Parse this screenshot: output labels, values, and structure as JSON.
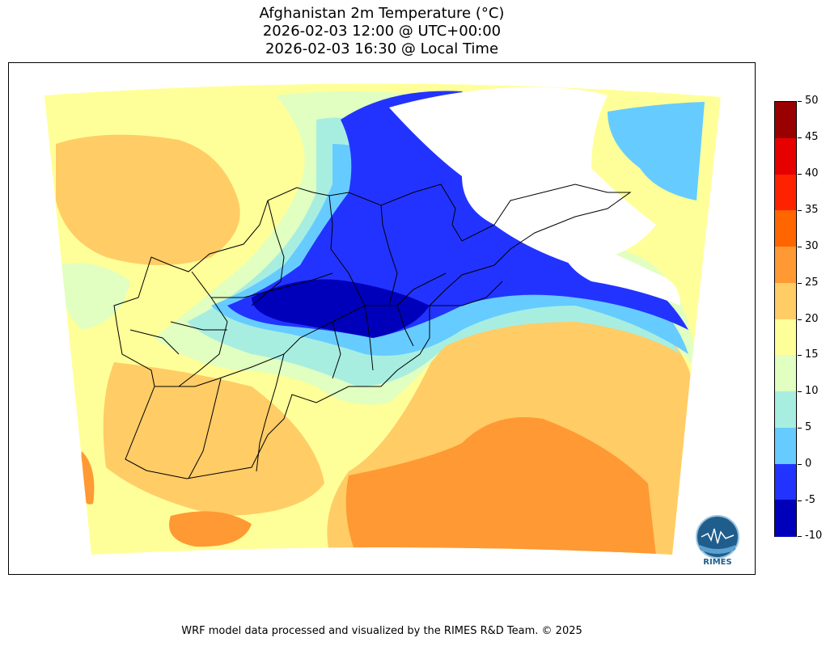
{
  "title": {
    "line1": "Afghanistan 2m Temperature (°C)",
    "line2": "2026-02-03 12:00 @ UTC+00:00",
    "line3": "2026-02-03 16:30 @ Local Time"
  },
  "colorbar": {
    "levels": [
      "50",
      "45",
      "40",
      "35",
      "30",
      "25",
      "20",
      "15",
      "10",
      "5",
      "0",
      "-5",
      "-10"
    ],
    "colors": [
      "#990000",
      "#e60000",
      "#ff2200",
      "#ff6600",
      "#ff9933",
      "#ffcc66",
      "#ffff99",
      "#e0ffc0",
      "#a8eee0",
      "#66ccff",
      "#2233ff",
      "#0000bb"
    ]
  },
  "logo": {
    "text": "RIMES"
  },
  "footer": "WRF model data processed and visualized by the RIMES R&D Team. © 2025"
}
